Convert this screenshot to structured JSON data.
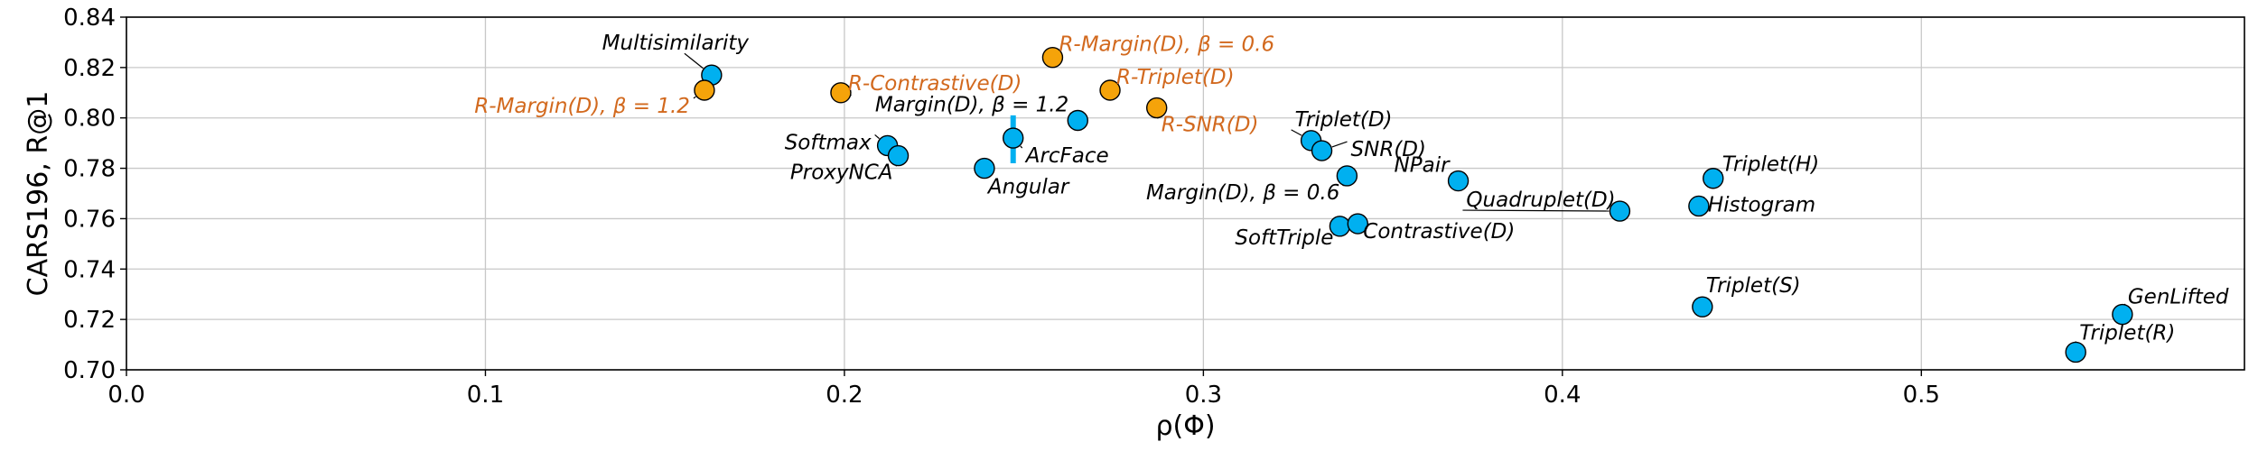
{
  "chart_data": {
    "type": "scatter",
    "title": "",
    "xlabel": "ρ(Φ)",
    "ylabel": "CARS196, R@1",
    "xlim": [
      0.0,
      0.59
    ],
    "ylim": [
      0.7,
      0.84
    ],
    "xticks": [
      0.0,
      0.1,
      0.2,
      0.3,
      0.4,
      0.5
    ],
    "xtick_labels": [
      "0.0",
      "0.1",
      "0.2",
      "0.3",
      "0.4",
      "0.5"
    ],
    "yticks": [
      0.7,
      0.72,
      0.74,
      0.76,
      0.78,
      0.8,
      0.82,
      0.84
    ],
    "ytick_labels": [
      "0.70",
      "0.72",
      "0.74",
      "0.76",
      "0.78",
      "0.80",
      "0.82",
      "0.84"
    ],
    "grid": true,
    "colors": {
      "baseline": "#00b0f0",
      "regularized": "#f5a30a",
      "regularized_label": "#d2691e",
      "edge": "#000000",
      "grid": "#c8c8c8"
    },
    "points": [
      {
        "label": "Multisimilarity",
        "x": 0.163,
        "y": 0.817,
        "group": "baseline"
      },
      {
        "label": "R-Margin(D), β = 1.2",
        "x": 0.161,
        "y": 0.811,
        "group": "regularized"
      },
      {
        "label": "R-Contrastive(D)",
        "x": 0.199,
        "y": 0.81,
        "group": "regularized"
      },
      {
        "label": "R-Margin(D), β = 0.6",
        "x": 0.258,
        "y": 0.824,
        "group": "regularized"
      },
      {
        "label": "R-Triplet(D)",
        "x": 0.274,
        "y": 0.811,
        "group": "regularized"
      },
      {
        "label": "R-SNR(D)",
        "x": 0.287,
        "y": 0.804,
        "group": "regularized"
      },
      {
        "label": "Margin(D), β = 1.2",
        "x": 0.265,
        "y": 0.799,
        "group": "baseline"
      },
      {
        "label": "Softmax",
        "x": 0.212,
        "y": 0.789,
        "group": "baseline"
      },
      {
        "label": "ProxyNCA",
        "x": 0.215,
        "y": 0.785,
        "group": "baseline"
      },
      {
        "label": "ArcFace",
        "x": 0.247,
        "y": 0.792,
        "group": "baseline"
      },
      {
        "label": "Angular",
        "x": 0.239,
        "y": 0.78,
        "group": "baseline"
      },
      {
        "label": "Triplet(D)",
        "x": 0.33,
        "y": 0.791,
        "group": "baseline"
      },
      {
        "label": "SNR(D)",
        "x": 0.333,
        "y": 0.787,
        "group": "baseline"
      },
      {
        "label": "Margin(D), β = 0.6",
        "x": 0.34,
        "y": 0.777,
        "group": "baseline"
      },
      {
        "label": "NPair",
        "x": 0.371,
        "y": 0.775,
        "group": "baseline"
      },
      {
        "label": "Quadruplet(D)",
        "x": 0.416,
        "y": 0.763,
        "group": "baseline"
      },
      {
        "label": "Triplet(H)",
        "x": 0.442,
        "y": 0.776,
        "group": "baseline"
      },
      {
        "label": "Histogram",
        "x": 0.438,
        "y": 0.765,
        "group": "baseline"
      },
      {
        "label": "SoftTriple",
        "x": 0.338,
        "y": 0.757,
        "group": "baseline"
      },
      {
        "label": "Contrastive(D)",
        "x": 0.343,
        "y": 0.758,
        "group": "baseline"
      },
      {
        "label": "Triplet(S)",
        "x": 0.439,
        "y": 0.725,
        "group": "baseline"
      },
      {
        "label": "GenLifted",
        "x": 0.556,
        "y": 0.722,
        "group": "baseline"
      },
      {
        "label": "Triplet(R)",
        "x": 0.543,
        "y": 0.707,
        "group": "baseline"
      }
    ],
    "error_bar": {
      "x": 0.247,
      "y_low": 0.782,
      "y_high": 0.801
    }
  }
}
